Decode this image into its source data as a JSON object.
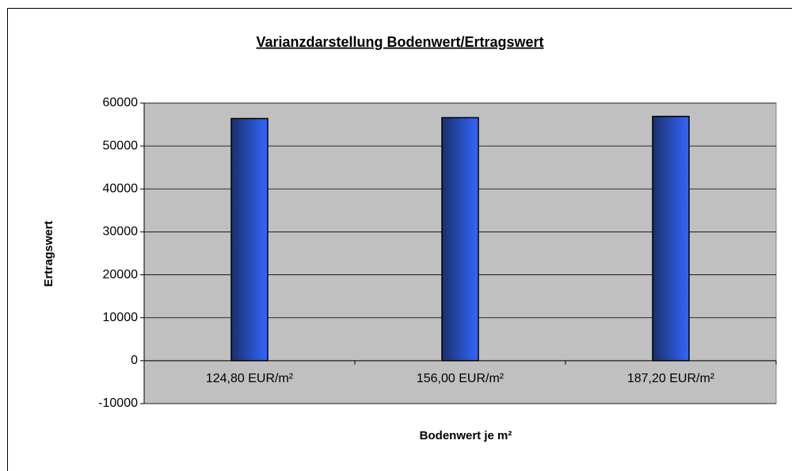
{
  "chart_data": {
    "type": "bar",
    "title": "Varianzdarstellung  Bodenwert/Ertragswert",
    "x_label": "Bodenwert je m²",
    "y_label": "Ertragswert",
    "categories": [
      "124,80 EUR/m²",
      "156,00 EUR/m²",
      "187,20 EUR/m²"
    ],
    "values": [
      56400,
      56600,
      56900
    ],
    "color": "#3366ff",
    "ylim": [
      -10000,
      60000
    ],
    "yticks": [
      -10000,
      0,
      10000,
      20000,
      30000,
      40000,
      50000,
      60000
    ],
    "grid": true
  }
}
